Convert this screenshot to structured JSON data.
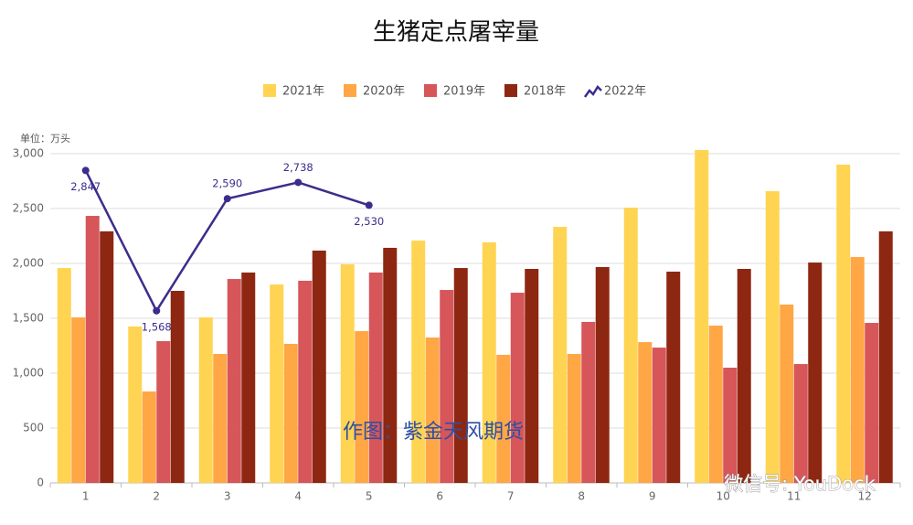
{
  "chart_data": {
    "type": "bar",
    "title": "生猪定点屠宰量",
    "y_unit_label": "单位：万头",
    "annotations": [
      "作图：紫金天风期货",
      "微信号: YouDock"
    ],
    "categories": [
      "1",
      "2",
      "3",
      "4",
      "5",
      "6",
      "7",
      "8",
      "9",
      "10",
      "11",
      "12"
    ],
    "series": [
      {
        "name": "2021年",
        "type": "bar",
        "color": "#FFD452",
        "values": [
          1958,
          1425,
          1508,
          1808,
          1992,
          2208,
          2192,
          2333,
          2508,
          3033,
          2658,
          2900
        ]
      },
      {
        "name": "2020年",
        "type": "bar",
        "color": "#FFA645",
        "values": [
          1508,
          833,
          1175,
          1267,
          1383,
          1325,
          1167,
          1175,
          1283,
          1433,
          1625,
          2058
        ]
      },
      {
        "name": "2019年",
        "type": "bar",
        "color": "#D6565A",
        "values": [
          2433,
          1292,
          1858,
          1842,
          1917,
          1758,
          1733,
          1467,
          1233,
          1050,
          1083,
          1458
        ]
      },
      {
        "name": "2018年",
        "type": "bar",
        "color": "#8E2711",
        "values": [
          2292,
          1750,
          1917,
          2117,
          2142,
          1958,
          1950,
          1967,
          1925,
          1950,
          2008,
          2292
        ]
      },
      {
        "name": "2022年",
        "type": "line",
        "color": "#3D2C8D",
        "values": [
          2847,
          1568,
          2590,
          2738,
          2530,
          null,
          null,
          null,
          null,
          null,
          null,
          null
        ],
        "value_labels": [
          "2,847",
          "1,568",
          "2,590",
          "2,738",
          "2,530",
          null,
          null,
          null,
          null,
          null,
          null,
          null
        ]
      }
    ],
    "ylim": [
      0,
      3000
    ],
    "yticks": [
      0,
      500,
      {
        "value": 1000,
        "label": "1,000"
      },
      {
        "value": 1500,
        "label": "1,500"
      },
      {
        "value": 2000,
        "label": "2,000"
      },
      {
        "value": 2500,
        "label": "2,500"
      },
      {
        "value": 3000,
        "label": "3,000"
      }
    ],
    "grid": true,
    "legend": "top"
  }
}
